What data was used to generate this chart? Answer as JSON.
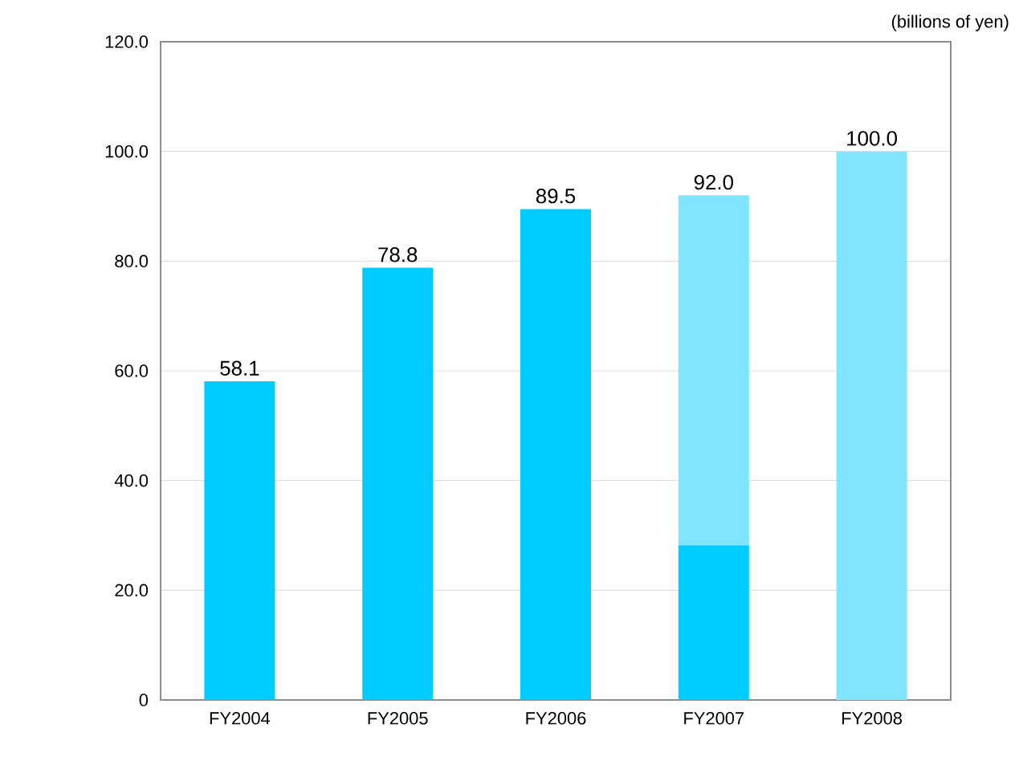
{
  "chart_data": {
    "type": "bar",
    "stacked": true,
    "ylabel": "(billions of yen)",
    "categories": [
      "FY2004",
      "FY2005",
      "FY2006",
      "FY2007",
      "FY2008"
    ],
    "series": [
      {
        "color": "#00ccff",
        "values": [
          58.1,
          78.8,
          89.5,
          28.2,
          null
        ]
      },
      {
        "color": "#80e6ff",
        "values": [
          null,
          null,
          null,
          63.8,
          100.0
        ]
      }
    ],
    "totals": [
      "58.1",
      "78.8",
      "89.5",
      "92.0",
      "100.0"
    ],
    "ylim": [
      0,
      120
    ],
    "yticks": [
      0,
      {
        "value": 20,
        "label": "20.0"
      },
      {
        "value": 40,
        "label": "40.0"
      },
      {
        "value": 60,
        "label": "60.0"
      },
      {
        "value": 80,
        "label": "80.0"
      },
      {
        "value": 100,
        "label": "100.0"
      },
      {
        "value": 120,
        "label": "120.0"
      }
    ],
    "grid": "y"
  }
}
